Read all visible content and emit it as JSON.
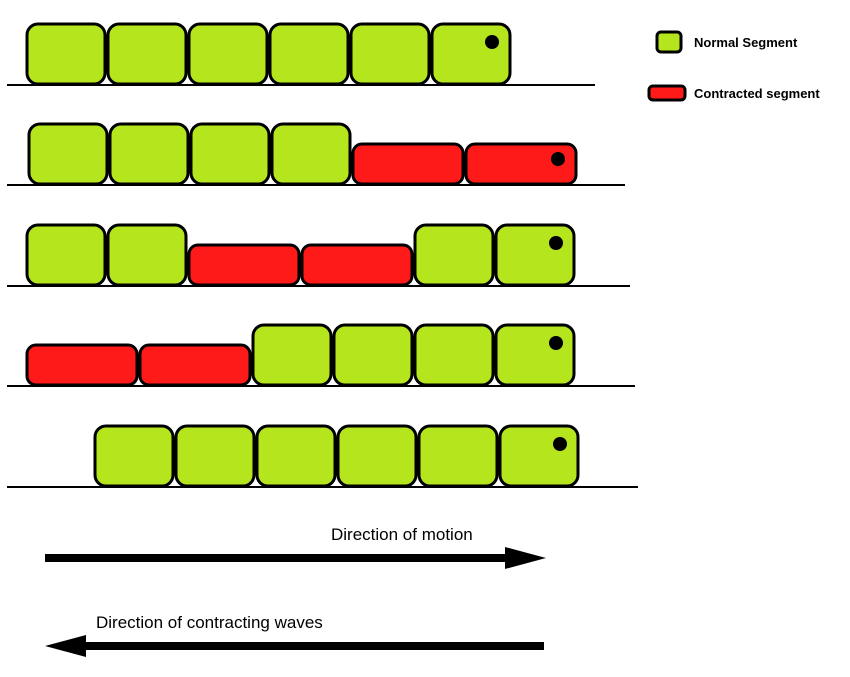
{
  "colors": {
    "normal": "#b5e61d",
    "contracted": "#ff1a1a",
    "outline": "#000000",
    "background": "#ffffff"
  },
  "legend": {
    "normal_label": "Normal Segment",
    "contracted_label": "Contracted segment"
  },
  "stages": [
    {
      "segments": [
        "normal",
        "normal",
        "normal",
        "normal",
        "normal",
        "normal"
      ]
    },
    {
      "segments": [
        "normal",
        "normal",
        "normal",
        "normal",
        "contracted",
        "contracted"
      ]
    },
    {
      "segments": [
        "normal",
        "normal",
        "contracted",
        "contracted",
        "normal",
        "normal"
      ]
    },
    {
      "segments": [
        "contracted",
        "contracted",
        "normal",
        "normal",
        "normal",
        "normal"
      ]
    },
    {
      "segments": [
        "normal",
        "normal",
        "normal",
        "normal",
        "normal",
        "normal"
      ]
    }
  ],
  "arrows": {
    "motion_label": "Direction of motion",
    "motion_direction": "right",
    "waves_label": "Direction of contracting waves",
    "waves_direction": "left"
  }
}
